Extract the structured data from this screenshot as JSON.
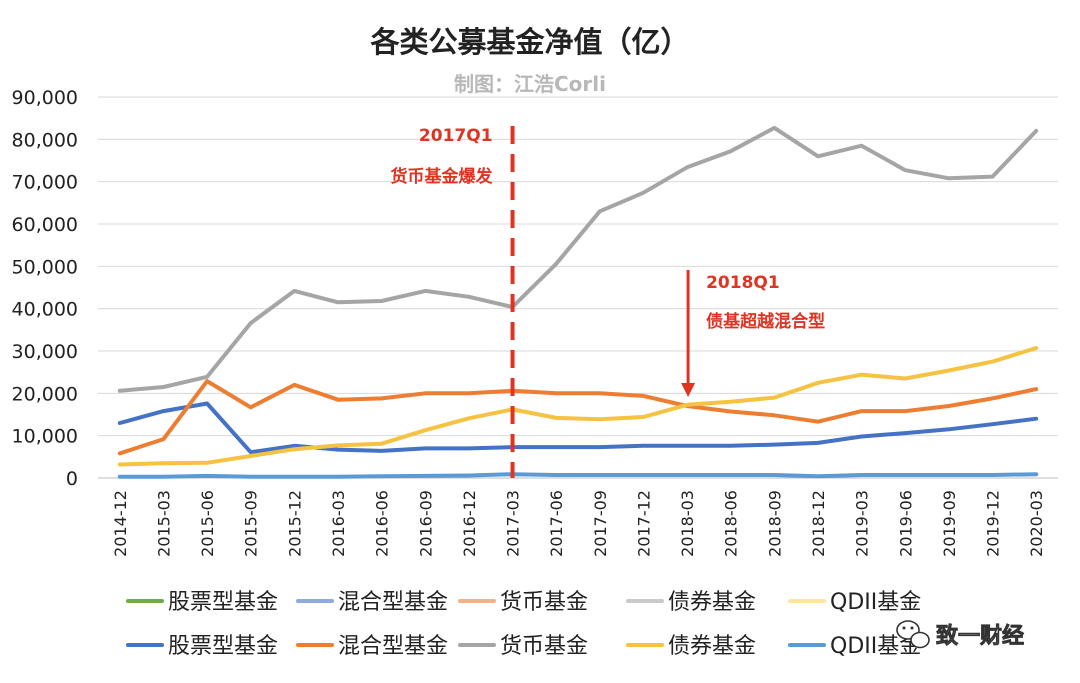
{
  "chart_data": {
    "type": "line",
    "title": "各类公募基金净值（亿）",
    "subtitle": "制图：江浩Corli",
    "ylim": [
      0,
      90000
    ],
    "yticks": [
      "90,000",
      "80,000",
      "70,000",
      "60,000",
      "50,000",
      "40,000",
      "30,000",
      "20,000",
      "10,000",
      "0"
    ],
    "ytick_values": [
      90000,
      80000,
      70000,
      60000,
      50000,
      40000,
      30000,
      20000,
      10000,
      0
    ],
    "grid": "horizontal",
    "categories": [
      "2014-12",
      "2015-03",
      "2015-06",
      "2015-09",
      "2015-12",
      "2016-03",
      "2016-06",
      "2016-09",
      "2016-12",
      "2017-03",
      "2017-06",
      "2017-09",
      "2017-12",
      "2018-03",
      "2018-06",
      "2018-09",
      "2018-12",
      "2019-03",
      "2019-06",
      "2019-09",
      "2019-12",
      "2020-03"
    ],
    "series": [
      {
        "name": "股票型基金",
        "color": "#4472c4",
        "values": [
          13000,
          15800,
          17600,
          6100,
          7600,
          6700,
          6400,
          7000,
          7000,
          7300,
          7300,
          7300,
          7600,
          7600,
          7600,
          7900,
          8300,
          9800,
          10600,
          11500,
          12700,
          14000
        ]
      },
      {
        "name": "混合型基金",
        "color": "#ed7d31",
        "values": [
          5800,
          9200,
          22900,
          16700,
          22000,
          18500,
          18800,
          20000,
          20000,
          20600,
          20000,
          20000,
          19400,
          17000,
          15700,
          14800,
          13300,
          15800,
          15800,
          17000,
          18800,
          21000
        ]
      },
      {
        "name": "货币基金",
        "color": "#a5a5a5",
        "values": [
          20600,
          21500,
          23900,
          36600,
          44200,
          41500,
          41800,
          44200,
          42800,
          40400,
          50600,
          63000,
          67400,
          73400,
          77200,
          82700,
          76000,
          78500,
          72700,
          70800,
          71200,
          82000
        ]
      },
      {
        "name": "债券基金",
        "color": "#f5c242",
        "values": [
          3200,
          3500,
          3600,
          5200,
          6800,
          7700,
          8100,
          11300,
          14100,
          16200,
          14200,
          13900,
          14400,
          17300,
          18000,
          19000,
          22500,
          24400,
          23500,
          25400,
          27500,
          30700
        ]
      },
      {
        "name": "QDII基金",
        "color": "#5b9bd5",
        "values": [
          300,
          300,
          500,
          300,
          300,
          300,
          400,
          500,
          600,
          900,
          700,
          700,
          700,
          700,
          700,
          700,
          400,
          700,
          700,
          700,
          700,
          900
        ]
      }
    ],
    "legend_position": "bottom",
    "legend_rows": [
      [
        {
          "name": "股票型基金",
          "color": "#70ad47"
        },
        {
          "name": "混合型基金",
          "color": "#8faadc"
        },
        {
          "name": "货币基金",
          "color": "#f4b183"
        },
        {
          "name": "债券基金",
          "color": "#c9c9c9"
        },
        {
          "name": "QDII基金",
          "color": "#ffe699"
        }
      ],
      [
        {
          "name": "股票型基金",
          "color": "#4472c4"
        },
        {
          "name": "混合型基金",
          "color": "#ed7d31"
        },
        {
          "name": "货币基金",
          "color": "#a5a5a5"
        },
        {
          "name": "债券基金",
          "color": "#f5c242"
        },
        {
          "name": "QDII基金",
          "color": "#5b9bd5"
        }
      ]
    ],
    "annotations": [
      {
        "category": "2017-03",
        "style": "dashed-vertical-line",
        "color": "#e03423",
        "line1": "2017Q1",
        "line2": "货币基金爆发"
      },
      {
        "category": "2018-03",
        "style": "down-arrow",
        "color": "#e03423",
        "line1": "2018Q1",
        "line2": "债基超越混合型"
      }
    ]
  },
  "watermark": {
    "text": "致一财经",
    "icon": "wechat-icon"
  }
}
